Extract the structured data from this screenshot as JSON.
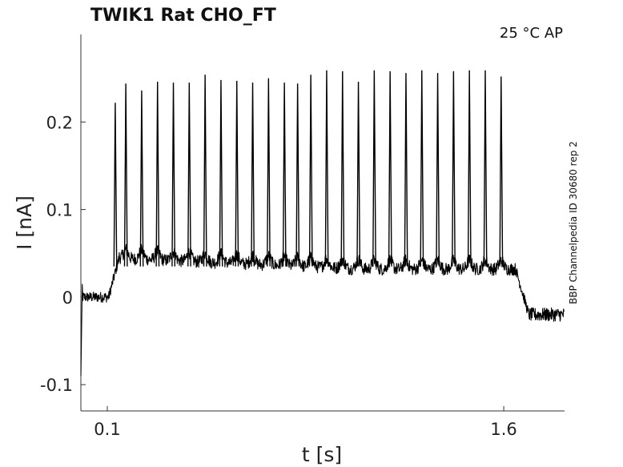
{
  "chart_data": {
    "type": "line",
    "title": "TWIK1  Rat  CHO_FT",
    "annotation": "25 °C  AP",
    "side_label": "BBP Channelpedia ID 30680 rep 2",
    "xlabel": "t [s]",
    "ylabel": "I [nA]",
    "xlim": [
      0.0,
      1.83
    ],
    "ylim": [
      -0.13,
      0.3
    ],
    "x_ticks": [
      {
        "value": 0.1,
        "label": "0.1"
      },
      {
        "value": 1.6,
        "label": "1.6"
      }
    ],
    "y_ticks": [
      {
        "value": -0.1,
        "label": "-0.1"
      },
      {
        "value": 0,
        "label": "0"
      },
      {
        "value": 0.1,
        "label": "0.1"
      },
      {
        "value": 0.2,
        "label": "0.2"
      }
    ],
    "grid": false,
    "line_color": "#000000",
    "baseline": {
      "pre": 0.0,
      "plateau_start": 0.045,
      "plateau_end": 0.032,
      "post": -0.02
    },
    "stimulus": {
      "start": 0.105,
      "end": 1.645
    },
    "spikes": {
      "times": [
        0.13,
        0.17,
        0.23,
        0.29,
        0.35,
        0.41,
        0.47,
        0.53,
        0.59,
        0.65,
        0.71,
        0.77,
        0.82,
        0.87,
        0.93,
        0.99,
        1.05,
        1.11,
        1.17,
        1.23,
        1.29,
        1.35,
        1.41,
        1.47,
        1.53,
        1.59
      ],
      "peaks": [
        0.222,
        0.244,
        0.236,
        0.246,
        0.245,
        0.245,
        0.254,
        0.248,
        0.247,
        0.245,
        0.25,
        0.245,
        0.244,
        0.254,
        0.259,
        0.258,
        0.246,
        0.259,
        0.258,
        0.256,
        0.259,
        0.256,
        0.258,
        0.259,
        0.259,
        0.252
      ]
    }
  }
}
